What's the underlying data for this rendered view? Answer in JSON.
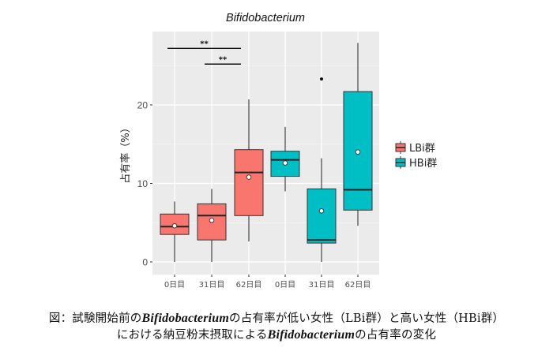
{
  "chart_data": {
    "type": "boxplot",
    "title": "Bifidobacterium",
    "xlabel": "",
    "ylabel": "占有率（%）",
    "ylim": [
      -1.6,
      29.3
    ],
    "yticks": [
      0,
      10,
      20
    ],
    "grid": true,
    "legend": {
      "position": "right",
      "entries": [
        {
          "label": "LBi群",
          "color": "#F8766D"
        },
        {
          "label": "HBi群",
          "color": "#00BFC4"
        }
      ]
    },
    "categories": [
      "0日目",
      "31日目",
      "62日目",
      "0日目",
      "31日目",
      "62日目"
    ],
    "series": [
      {
        "name": "LBi群",
        "color": "#F8766D",
        "boxes": [
          {
            "x": "0日目",
            "whisker_low": 0.0,
            "q1": 3.5,
            "median": 4.5,
            "q3": 6.1,
            "whisker_high": 7.7,
            "mean": 4.6,
            "outliers": []
          },
          {
            "x": "31日目",
            "whisker_low": 0.0,
            "q1": 2.8,
            "median": 5.9,
            "q3": 7.4,
            "whisker_high": 9.3,
            "mean": 5.3,
            "outliers": []
          },
          {
            "x": "62日目",
            "whisker_low": 2.6,
            "q1": 5.9,
            "median": 11.4,
            "q3": 14.3,
            "whisker_high": 20.7,
            "mean": 10.8,
            "outliers": []
          }
        ]
      },
      {
        "name": "HBi群",
        "color": "#00BFC4",
        "boxes": [
          {
            "x": "0日目",
            "whisker_low": 9.0,
            "q1": 10.9,
            "median": 13.0,
            "q3": 14.1,
            "whisker_high": 17.2,
            "mean": 12.6,
            "outliers": []
          },
          {
            "x": "31日目",
            "whisker_low": 0.0,
            "q1": 2.4,
            "median": 2.8,
            "q3": 9.3,
            "whisker_high": 13.2,
            "mean": 6.5,
            "outliers": [
              23.3
            ]
          },
          {
            "x": "62日目",
            "whisker_low": 4.6,
            "q1": 6.6,
            "median": 9.2,
            "q3": 21.7,
            "whisker_high": 27.9,
            "mean": 14.0,
            "outliers": []
          }
        ]
      }
    ],
    "annotations": [
      {
        "type": "significance",
        "label": "**",
        "from": 0,
        "to": 2,
        "y": 27.2
      },
      {
        "type": "significance",
        "label": "**",
        "from": 1,
        "to": 2,
        "y": 25.2
      }
    ]
  },
  "caption": {
    "line1_pre": "図：試験開始前の",
    "line1_italic": "Bifidobacterium",
    "line1_post": "の占有率が低い女性（LBi群）と高い女性（HBi群）",
    "line2_pre": "における納豆粉末摂取による",
    "line2_italic": "Bifidobacterium",
    "line2_post": "の占有率の変化"
  }
}
